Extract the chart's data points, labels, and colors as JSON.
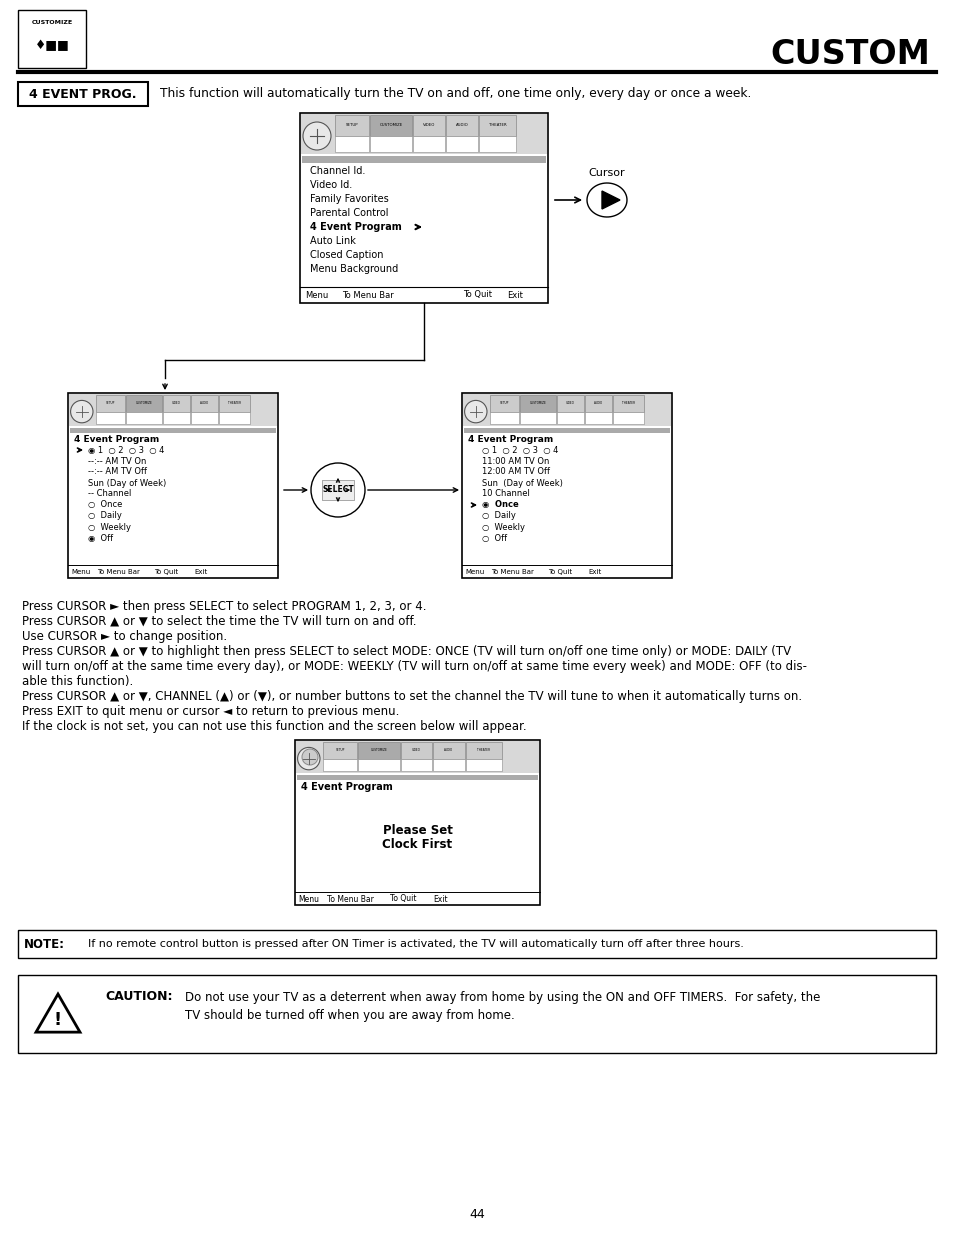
{
  "title": "CUSTOM",
  "page_number": "44",
  "bg_color": "#ffffff",
  "text_color": "#000000",
  "section_label": "4 EVENT PROG.",
  "section_desc": "This function will automatically turn the TV on and off, one time only, every day or once a week.",
  "body_paragraphs": [
    "Press CURSOR ► then press SELECT to select PROGRAM 1, 2, 3, or 4.",
    "Press CURSOR ▲ or ▼ to select the time the TV will turn on and off.",
    "Use CURSOR ► to change position.",
    "Press CURSOR ▲ or ▼ to highlight then press SELECT to select MODE: ONCE (TV will turn on/off one time only) or MODE: DAILY (TV",
    "will turn on/off at the same time every day), or MODE: WEEKLY (TV will turn on/off at same time every week) and MODE: OFF (to dis-",
    "able this function).",
    "Press CURSOR ▲ or ▼, CHANNEL (▲) or (▼), or number buttons to set the channel the TV will tune to when it automatically turns on.",
    "Press EXIT to quit menu or cursor ◄ to return to previous menu.",
    "If the clock is not set, you can not use this function and the screen below will appear."
  ],
  "note_text": "If no remote control button is pressed after ON Timer is activated, the TV will automatically turn off after three hours.",
  "caution_line1": "Do not use your TV as a deterrent when away from home by using the ON and OFF TIMERS.  For safety, the",
  "caution_line2": "TV should be turned off when you are away from home."
}
